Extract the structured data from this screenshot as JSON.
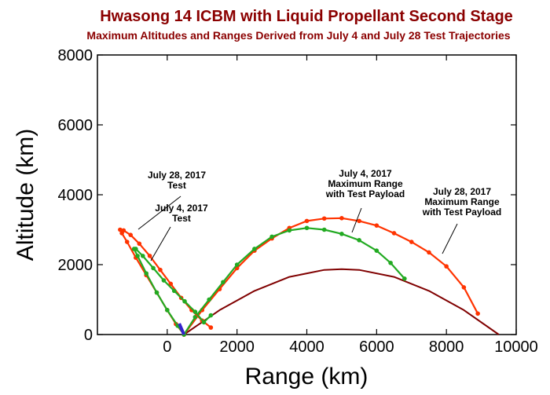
{
  "chart_data": {
    "type": "line",
    "title": "Hwasong 14 ICBM with Liquid Propellant Second Stage",
    "subtitle": "Maximum Altitudes and Ranges Derived from July 4 and July 28 Test Trajectories",
    "xlabel": "Range (km)",
    "ylabel": "Altitude (km)",
    "xlim": [
      -2000,
      10000
    ],
    "ylim": [
      0,
      8000
    ],
    "xticks": [
      "0",
      "2000",
      "4000",
      "6000",
      "8000",
      "10000"
    ],
    "yticks": [
      "0",
      "2000",
      "4000",
      "6000",
      "8000"
    ],
    "colors": {
      "title": "#8b0000",
      "earth_curve": "#800000",
      "july28": "#ff3300",
      "july4": "#22aa22",
      "boost": "#3322cc"
    },
    "series": [
      {
        "id": "july28_test",
        "x": [
          480,
          250,
          0,
          -300,
          -600,
          -900,
          -1150,
          -1300,
          -1350,
          -1250,
          -1050,
          -800,
          -500,
          -200,
          100,
          400,
          700,
          1000,
          1250
        ],
        "y": [
          0,
          300,
          700,
          1200,
          1700,
          2200,
          2650,
          2900,
          3000,
          2980,
          2850,
          2600,
          2250,
          1850,
          1450,
          1050,
          700,
          400,
          200
        ]
      },
      {
        "id": "july4_test",
        "x": [
          480,
          300,
          0,
          -300,
          -600,
          -850,
          -950,
          -900,
          -700,
          -400,
          -100,
          200,
          500,
          800,
          1050,
          1250
        ],
        "y": [
          0,
          250,
          700,
          1200,
          1750,
          2250,
          2450,
          2450,
          2250,
          1900,
          1550,
          1250,
          950,
          650,
          350,
          550
        ]
      },
      {
        "id": "july28_max_range",
        "x": [
          480,
          1000,
          1500,
          2000,
          2500,
          3000,
          3500,
          4000,
          4500,
          5000,
          5500,
          6000,
          6500,
          7000,
          7500,
          8000,
          8500,
          8900
        ],
        "y": [
          0,
          700,
          1300,
          1900,
          2400,
          2750,
          3050,
          3250,
          3320,
          3330,
          3250,
          3120,
          2900,
          2650,
          2350,
          1950,
          1350,
          600
        ]
      },
      {
        "id": "july4_max_range",
        "x": [
          480,
          800,
          1200,
          1600,
          2000,
          2500,
          3000,
          3500,
          4000,
          4500,
          5000,
          5500,
          6000,
          6400,
          6800
        ],
        "y": [
          0,
          500,
          1000,
          1500,
          2000,
          2450,
          2800,
          2980,
          3050,
          3000,
          2880,
          2700,
          2400,
          2050,
          1600
        ]
      },
      {
        "id": "earth_curve",
        "x": [
          480,
          1500,
          2500,
          3500,
          4500,
          5000,
          5500,
          6500,
          7500,
          8500,
          9500
        ],
        "y": [
          0,
          700,
          1250,
          1650,
          1850,
          1870,
          1850,
          1650,
          1250,
          700,
          0
        ]
      }
    ],
    "annotations": [
      {
        "lines": [
          "July 28, 2017",
          "Test"
        ]
      },
      {
        "lines": [
          "July 4, 2017",
          "Test"
        ]
      },
      {
        "lines": [
          "July 4, 2017",
          "Maximum Range",
          "with Test Payload"
        ]
      },
      {
        "lines": [
          "July 28, 2017",
          "Maximum Range",
          "with Test Payload"
        ]
      }
    ]
  }
}
